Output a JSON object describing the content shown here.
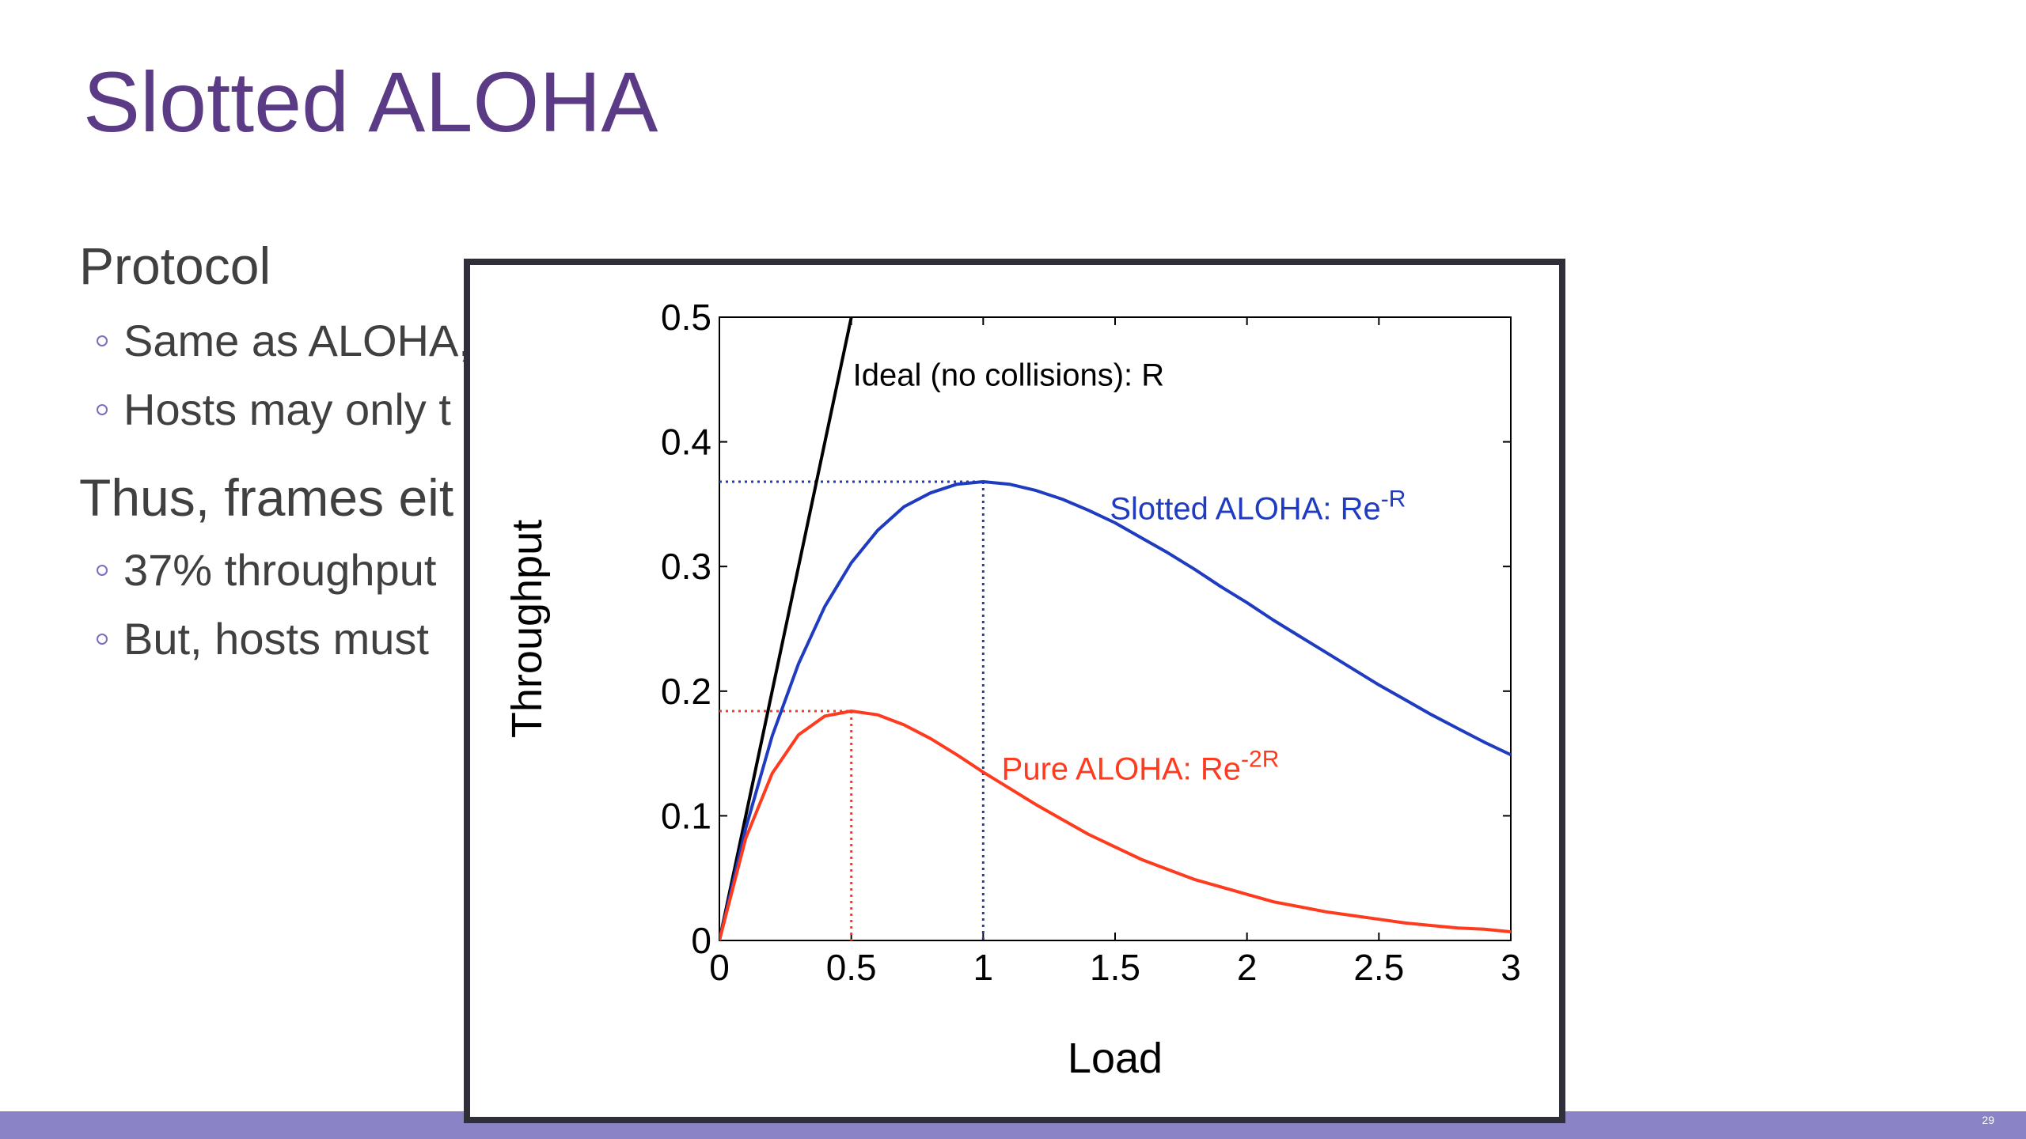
{
  "slide": {
    "title": "Slotted ALOHA",
    "heading1": "Protocol",
    "bullet1": "Same as ALOHA,",
    "bullet2": "Hosts may only t",
    "heading2": "Thus, frames eit",
    "bullet3": "37% throughput",
    "bullet4": "But, hosts must",
    "page_number": "29"
  },
  "colors": {
    "title": "#5b3b86",
    "footer": "#8a84c6",
    "ideal": "#000000",
    "slotted": "#1f3bbf",
    "pure": "#ff3b1f"
  },
  "chart_data": {
    "type": "line",
    "xlabel": "Load",
    "ylabel": "Throughput",
    "xlim": [
      0,
      3
    ],
    "ylim": [
      0,
      0.5
    ],
    "x_ticks": [
      "0",
      "0.5",
      "1",
      "1.5",
      "2",
      "2.5",
      "3"
    ],
    "y_ticks": [
      "0",
      "0.1",
      "0.2",
      "0.3",
      "0.4",
      "0.5"
    ],
    "x": [
      0,
      0.1,
      0.2,
      0.3,
      0.4,
      0.5,
      0.6,
      0.7,
      0.8,
      0.9,
      1.0,
      1.1,
      1.2,
      1.3,
      1.4,
      1.5,
      1.6,
      1.7,
      1.8,
      1.9,
      2.0,
      2.1,
      2.2,
      2.3,
      2.4,
      2.5,
      2.6,
      2.7,
      2.8,
      2.9,
      3.0
    ],
    "series": [
      {
        "name": "Ideal (no collisions): R",
        "x": [
          0,
          0.5
        ],
        "values": [
          0,
          0.5
        ]
      },
      {
        "name": "Slotted ALOHA: Re-R",
        "values": [
          0,
          0.09,
          0.164,
          0.222,
          0.268,
          0.303,
          0.329,
          0.348,
          0.359,
          0.366,
          0.368,
          0.366,
          0.361,
          0.354,
          0.345,
          0.335,
          0.323,
          0.311,
          0.298,
          0.284,
          0.271,
          0.257,
          0.244,
          0.231,
          0.218,
          0.205,
          0.193,
          0.181,
          0.17,
          0.159,
          0.149
        ]
      },
      {
        "name": "Pure ALOHA: Re-2R",
        "values": [
          0,
          0.082,
          0.134,
          0.165,
          0.18,
          0.184,
          0.181,
          0.173,
          0.162,
          0.149,
          0.135,
          0.122,
          0.109,
          0.097,
          0.085,
          0.075,
          0.065,
          0.057,
          0.049,
          0.043,
          0.037,
          0.031,
          0.027,
          0.023,
          0.02,
          0.017,
          0.014,
          0.012,
          0.01,
          0.009,
          0.007
        ]
      }
    ],
    "labels": {
      "ideal": "Ideal (no collisions): R",
      "slotted_prefix": "Slotted ALOHA: Re",
      "slotted_exp": "-R",
      "pure_prefix": "Pure ALOHA: Re",
      "pure_exp": "-2R"
    },
    "markers": [
      {
        "x": 1.0,
        "y": 0.368,
        "color": "#1f3bbf"
      },
      {
        "x": 0.5,
        "y": 0.184,
        "color": "#ff3b1f"
      }
    ]
  }
}
